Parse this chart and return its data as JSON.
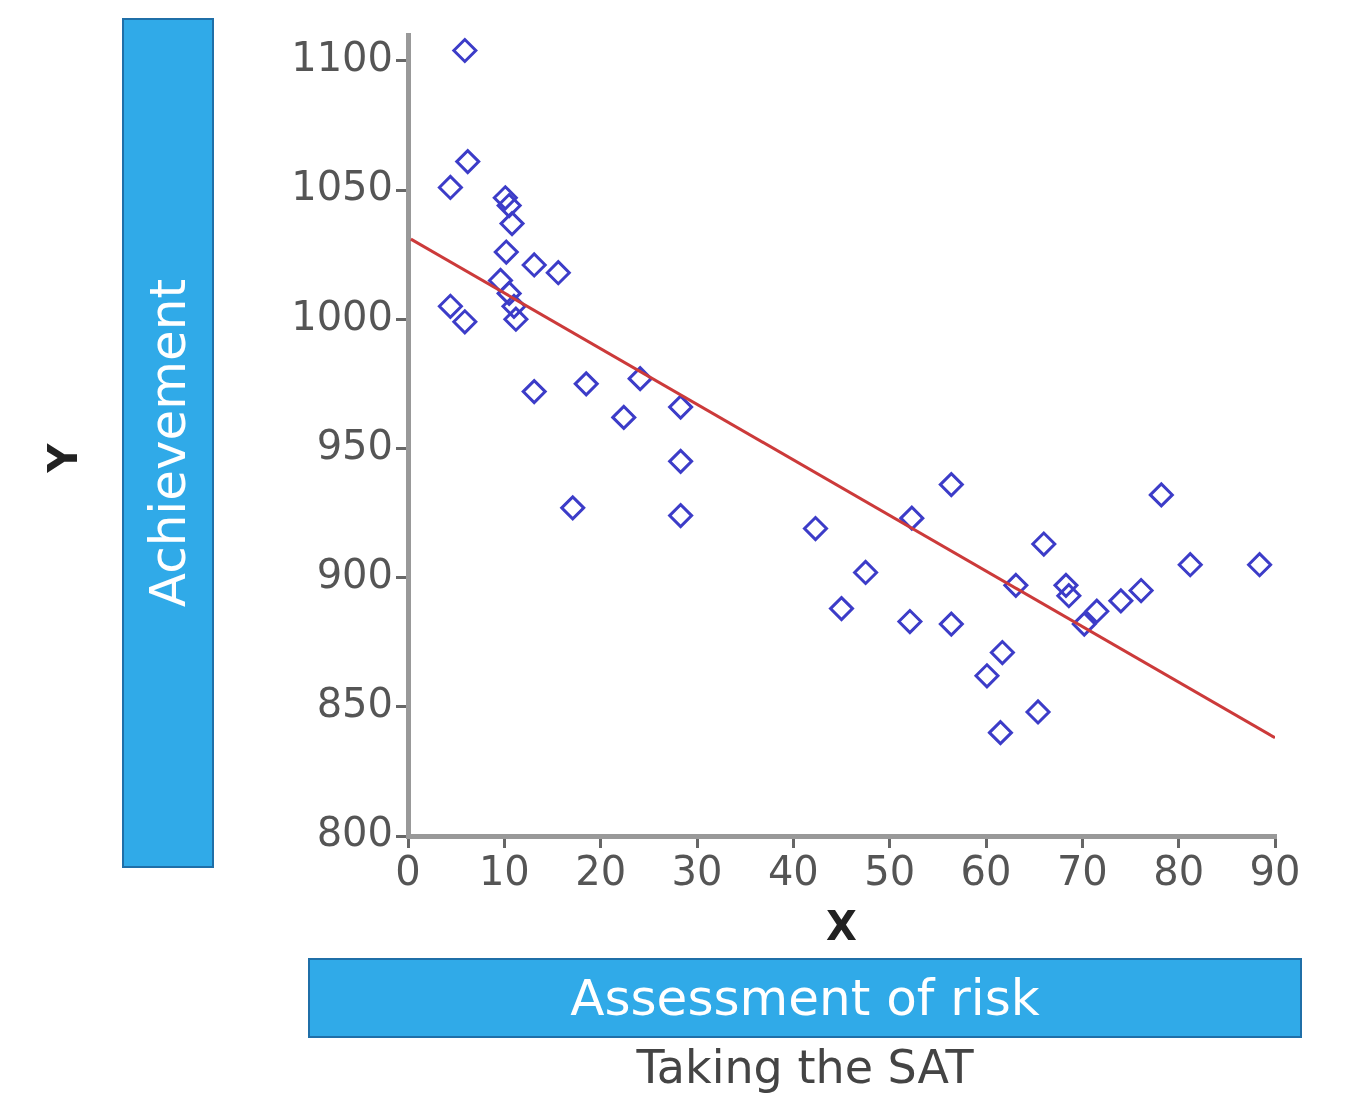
{
  "chart_data": {
    "type": "scatter",
    "xlabel": "X",
    "annotations": [
      "Y",
      "Achievement",
      "Assessment of risk",
      "Taking the SAT"
    ],
    "xlim": [
      0,
      90
    ],
    "xticks": [
      0,
      10,
      20,
      30,
      40,
      50,
      60,
      70,
      80,
      90
    ],
    "ylim": [
      800,
      1110
    ],
    "yticks": [
      800,
      850,
      900,
      950,
      1000,
      1050,
      1100
    ],
    "grid": false,
    "legend": false,
    "marker": "diamond",
    "series": [
      {
        "type": "scatter",
        "color": "#3c3cc8",
        "x": [
          5.9,
          6.2,
          4.4,
          10.1,
          10.5,
          10.8,
          10.2,
          13.1,
          15.6,
          9.6,
          10.5,
          11,
          11.2,
          4.4,
          5.9,
          13.1,
          18.5,
          24.1,
          28.3,
          22.4,
          28.3,
          17.1,
          28.3,
          42.3,
          56.4,
          52.3,
          47.5,
          45,
          52.1,
          56.4,
          66,
          63.1,
          68.3,
          68.6,
          70.2,
          71.5,
          74,
          76.1,
          78.2,
          81.2,
          88.4,
          61.7,
          60.1,
          61.5,
          65.4
        ],
        "values": [
          1104,
          1061,
          1051,
          1047,
          1044,
          1037,
          1026,
          1021,
          1018,
          1015,
          1010,
          1005,
          1000,
          1005,
          999,
          972,
          975,
          977,
          966,
          962,
          945,
          927,
          924,
          919,
          936,
          923,
          902,
          888,
          883,
          882,
          913,
          897,
          897,
          893,
          882,
          887,
          891,
          895,
          932,
          905,
          905,
          871,
          862,
          840,
          848
        ]
      },
      {
        "type": "line",
        "color": "#cc3a3a",
        "x": [
          0.3,
          90
        ],
        "values": [
          1031,
          838
        ],
        "line_style": "solid",
        "marker": "none"
      }
    ]
  }
}
